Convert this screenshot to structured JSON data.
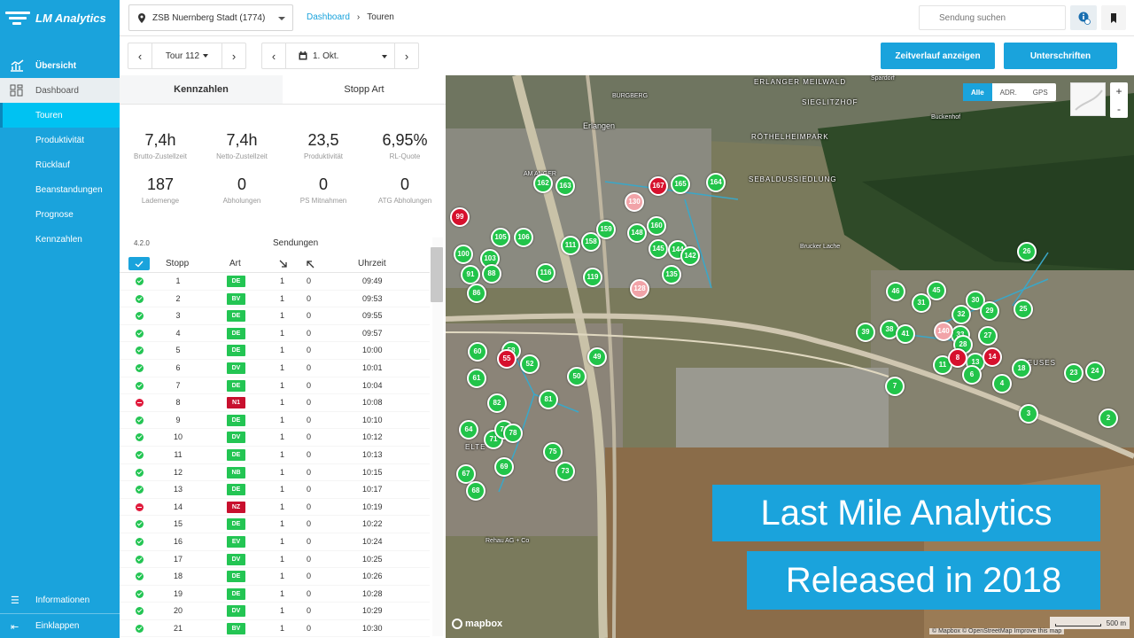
{
  "app": {
    "title": "LM Analytics"
  },
  "sidebar": {
    "overview": "Übersicht",
    "dashboard": "Dashboard",
    "items": [
      "Touren",
      "Produktivität",
      "Rücklauf",
      "Beanstandungen",
      "Prognose",
      "Kennzahlen"
    ],
    "info": "Informationen",
    "collapse": "Einklappen"
  },
  "topbar": {
    "depot": "ZSB Nuernberg Stadt (1774)",
    "breadcrumb_link": "Dashboard",
    "breadcrumb_sep": "›",
    "breadcrumb_current": "Touren",
    "search_placeholder": "Sendung suchen"
  },
  "controls": {
    "tour": "Tour 112",
    "date": "1. Okt.",
    "prev": "‹",
    "next": "›",
    "history_button": "Zeitverlauf anzeigen",
    "signatures_button": "Unterschriften"
  },
  "panel": {
    "tabs": [
      "Kennzahlen",
      "Stopp Art"
    ],
    "kpis_row1": [
      {
        "value": "7,4h",
        "label": "Brutto-Zustellzeit"
      },
      {
        "value": "7,4h",
        "label": "Netto-Zustellzeit"
      },
      {
        "value": "23,5",
        "label": "Produktivität"
      },
      {
        "value": "6,95%",
        "label": "RL-Quote"
      }
    ],
    "kpis_row2": [
      {
        "value": "187",
        "label": "Lademenge"
      },
      {
        "value": "0",
        "label": "Abholungen"
      },
      {
        "value": "0",
        "label": "PS Mitnahmen"
      },
      {
        "value": "0",
        "label": "ATG Abholungen"
      }
    ],
    "version": "4.2.0",
    "shipments_title": "Sendungen",
    "columns": {
      "stop": "Stopp",
      "type": "Art",
      "time": "Uhrzeit"
    },
    "rows": [
      {
        "stop": "1",
        "type": "DE",
        "del": "1",
        "pick": "0",
        "time": "09:49",
        "status": "ok"
      },
      {
        "stop": "2",
        "type": "BV",
        "del": "1",
        "pick": "0",
        "time": "09:53",
        "status": "ok"
      },
      {
        "stop": "3",
        "type": "DE",
        "del": "1",
        "pick": "0",
        "time": "09:55",
        "status": "ok"
      },
      {
        "stop": "4",
        "type": "DE",
        "del": "1",
        "pick": "0",
        "time": "09:57",
        "status": "ok"
      },
      {
        "stop": "5",
        "type": "DE",
        "del": "1",
        "pick": "0",
        "time": "10:00",
        "status": "ok"
      },
      {
        "stop": "6",
        "type": "DV",
        "del": "1",
        "pick": "0",
        "time": "10:01",
        "status": "ok"
      },
      {
        "stop": "7",
        "type": "DE",
        "del": "1",
        "pick": "0",
        "time": "10:04",
        "status": "ok"
      },
      {
        "stop": "8",
        "type": "N1",
        "del": "1",
        "pick": "0",
        "time": "10:08",
        "status": "err"
      },
      {
        "stop": "9",
        "type": "DE",
        "del": "1",
        "pick": "0",
        "time": "10:10",
        "status": "ok"
      },
      {
        "stop": "10",
        "type": "DV",
        "del": "1",
        "pick": "0",
        "time": "10:12",
        "status": "ok"
      },
      {
        "stop": "11",
        "type": "DE",
        "del": "1",
        "pick": "0",
        "time": "10:13",
        "status": "ok"
      },
      {
        "stop": "12",
        "type": "NB",
        "del": "1",
        "pick": "0",
        "time": "10:15",
        "status": "ok"
      },
      {
        "stop": "13",
        "type": "DE",
        "del": "1",
        "pick": "0",
        "time": "10:17",
        "status": "ok"
      },
      {
        "stop": "14",
        "type": "NZ",
        "del": "1",
        "pick": "0",
        "time": "10:19",
        "status": "err"
      },
      {
        "stop": "15",
        "type": "DE",
        "del": "1",
        "pick": "0",
        "time": "10:22",
        "status": "ok"
      },
      {
        "stop": "16",
        "type": "EV",
        "del": "1",
        "pick": "0",
        "time": "10:24",
        "status": "ok"
      },
      {
        "stop": "17",
        "type": "DV",
        "del": "1",
        "pick": "0",
        "time": "10:25",
        "status": "ok"
      },
      {
        "stop": "18",
        "type": "DE",
        "del": "1",
        "pick": "0",
        "time": "10:26",
        "status": "ok"
      },
      {
        "stop": "19",
        "type": "DE",
        "del": "1",
        "pick": "0",
        "time": "10:28",
        "status": "ok"
      },
      {
        "stop": "20",
        "type": "DV",
        "del": "1",
        "pick": "0",
        "time": "10:29",
        "status": "ok"
      },
      {
        "stop": "21",
        "type": "BV",
        "del": "1",
        "pick": "0",
        "time": "10:30",
        "status": "ok"
      }
    ]
  },
  "map": {
    "modes": [
      "Alle",
      "ADR.",
      "GPS"
    ],
    "zoom_in": "+",
    "zoom_out": "-",
    "places": [
      "Erlangen",
      "AM ANGER",
      "BURGBERG",
      "ERLANGER MEILWALD",
      "SIEGLITZHOF",
      "RÖTHELHEIMPARK",
      "SEBALDUSSIEDLUNG",
      "Brucker Lache",
      "Rehau AG + Co",
      "ELTE",
      "NEUSES",
      "Buckenhof",
      "Spardorf"
    ],
    "markers_red": [
      "99",
      "167",
      "55",
      "14",
      "8"
    ],
    "markers_green": [
      "162",
      "163",
      "165",
      "164",
      "105",
      "106",
      "103",
      "100",
      "91",
      "88",
      "86",
      "111",
      "116",
      "119",
      "158",
      "159",
      "160",
      "148",
      "145",
      "144",
      "142",
      "135",
      "60",
      "61",
      "58",
      "52",
      "50",
      "49",
      "82",
      "81",
      "64",
      "71",
      "70",
      "78",
      "75",
      "73",
      "69",
      "67",
      "68",
      "26",
      "46",
      "45",
      "31",
      "30",
      "32",
      "29",
      "25",
      "39",
      "38",
      "41",
      "33",
      "27",
      "28",
      "11",
      "13",
      "6",
      "4",
      "18",
      "7",
      "3",
      "23",
      "24",
      "2"
    ],
    "markers_pink": [
      "130",
      "128",
      "140"
    ],
    "mapbox": "mapbox",
    "scale": "500 m",
    "attribution": "© Mapbox © OpenStreetMap Improve this map"
  },
  "overlay": {
    "line1": "Last Mile Analytics",
    "line2": "Released in 2018"
  }
}
